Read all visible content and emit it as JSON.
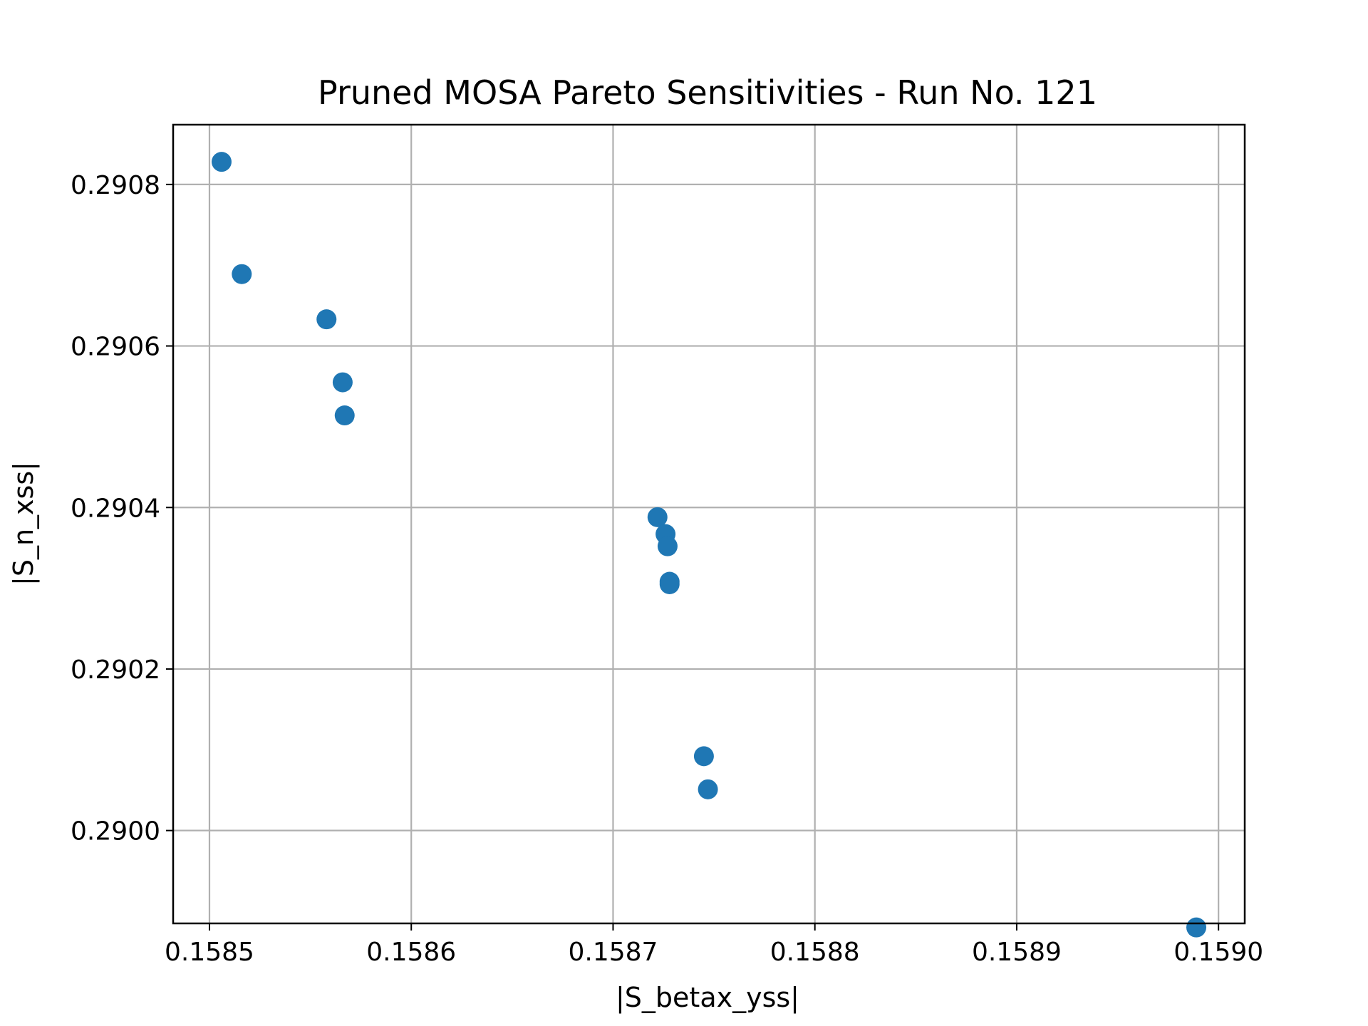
{
  "chart_data": {
    "type": "scatter",
    "title": "Pruned MOSA Pareto Sensitivities - Run No. 121",
    "xlabel": "|S_betax_yss|",
    "ylabel": "|S_n_xss|",
    "xlim": [
      0.158482,
      0.159013
    ],
    "ylim": [
      0.289885,
      0.290874
    ],
    "xticks": [
      0.1585,
      0.1586,
      0.1587,
      0.1588,
      0.1589,
      0.159
    ],
    "xtick_labels": [
      "0.1585",
      "0.1586",
      "0.1587",
      "0.1588",
      "0.1589",
      "0.1590"
    ],
    "yticks": [
      0.29,
      0.2902,
      0.2904,
      0.2906,
      0.2908
    ],
    "ytick_labels": [
      "0.2900",
      "0.2902",
      "0.2904",
      "0.2906",
      "0.2908"
    ],
    "grid": true,
    "marker_color": "#1f77b4",
    "points": [
      {
        "x": 0.158506,
        "y": 0.290828
      },
      {
        "x": 0.158516,
        "y": 0.290689
      },
      {
        "x": 0.158558,
        "y": 0.290633
      },
      {
        "x": 0.158566,
        "y": 0.290555
      },
      {
        "x": 0.158567,
        "y": 0.290514
      },
      {
        "x": 0.158722,
        "y": 0.290388
      },
      {
        "x": 0.158726,
        "y": 0.290367
      },
      {
        "x": 0.158727,
        "y": 0.290352
      },
      {
        "x": 0.158728,
        "y": 0.290308
      },
      {
        "x": 0.158728,
        "y": 0.290305
      },
      {
        "x": 0.158745,
        "y": 0.290092
      },
      {
        "x": 0.158747,
        "y": 0.290051
      },
      {
        "x": 0.158989,
        "y": 0.28988
      }
    ]
  }
}
